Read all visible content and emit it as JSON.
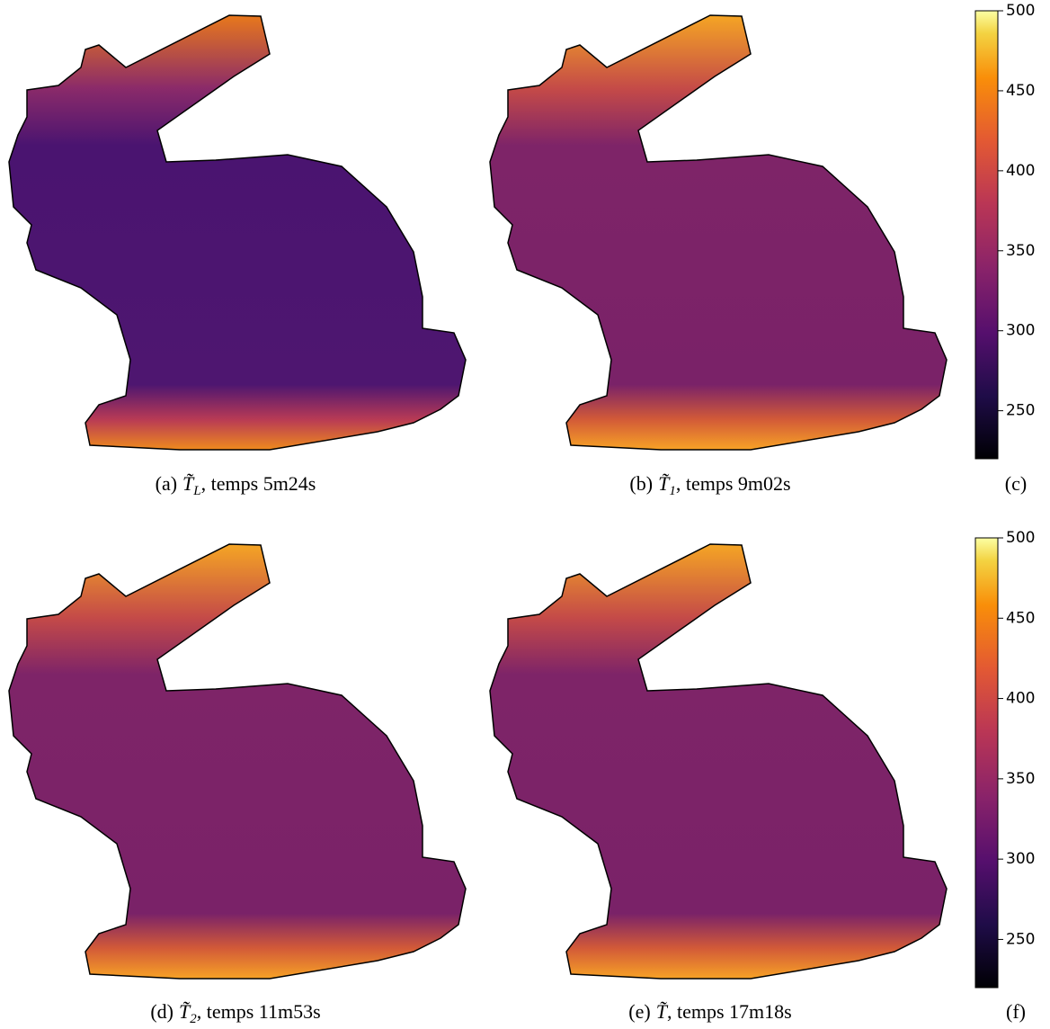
{
  "panels": [
    {
      "label": "(a)",
      "symbol": "T̃",
      "subscript": "L",
      "rest": ", temps 5m24s"
    },
    {
      "label": "(b)",
      "symbol": "T̃",
      "subscript": "1",
      "rest": ", temps 9m02s"
    },
    {
      "label": "(d)",
      "symbol": "T̃",
      "subscript": "2",
      "rest": ", temps 11m53s"
    },
    {
      "label": "(e)",
      "symbol": "T̃",
      "subscript": null,
      "rest": ", temps 17m18s"
    }
  ],
  "colorbars": [
    {
      "label": "(c)",
      "lim": [
        220,
        500
      ],
      "ticks": [
        250,
        300,
        350,
        400,
        450,
        500
      ]
    },
    {
      "label": "(f)",
      "lim": [
        220,
        500
      ],
      "ticks": [
        250,
        300,
        350,
        400,
        450,
        500
      ]
    }
  ]
}
